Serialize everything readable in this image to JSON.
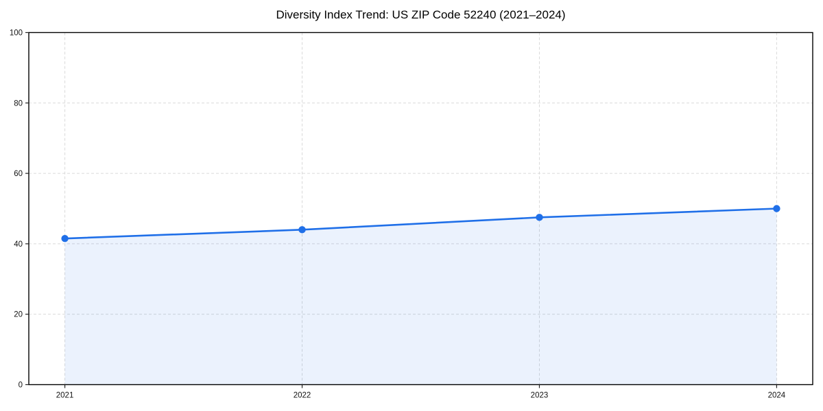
{
  "chart_data": {
    "type": "line",
    "title": "Diversity Index Trend: US ZIP Code 52240 (2021–2024)",
    "categories": [
      "2021",
      "2022",
      "2023",
      "2024"
    ],
    "series": [
      {
        "name": "Diversity Index",
        "values": [
          41.5,
          44.0,
          47.5,
          50.0
        ]
      }
    ],
    "xlabel": "",
    "ylabel": "",
    "ylim": [
      0,
      100
    ],
    "yticks": [
      0,
      20,
      40,
      60,
      80,
      100
    ],
    "grid": "dashed-both-axes",
    "legend_position": "none",
    "area_fill": true,
    "marker": "circle",
    "colors": {
      "line": "#1f6fe8",
      "marker": "#1f6fe8",
      "area_fill_rgba": "rgba(33,110,235,0.09)",
      "grid": "#d9d9d9",
      "axis": "#000000",
      "tick": "#222222",
      "tick_label": "#111111",
      "title": "#000000",
      "background": "#ffffff"
    }
  }
}
